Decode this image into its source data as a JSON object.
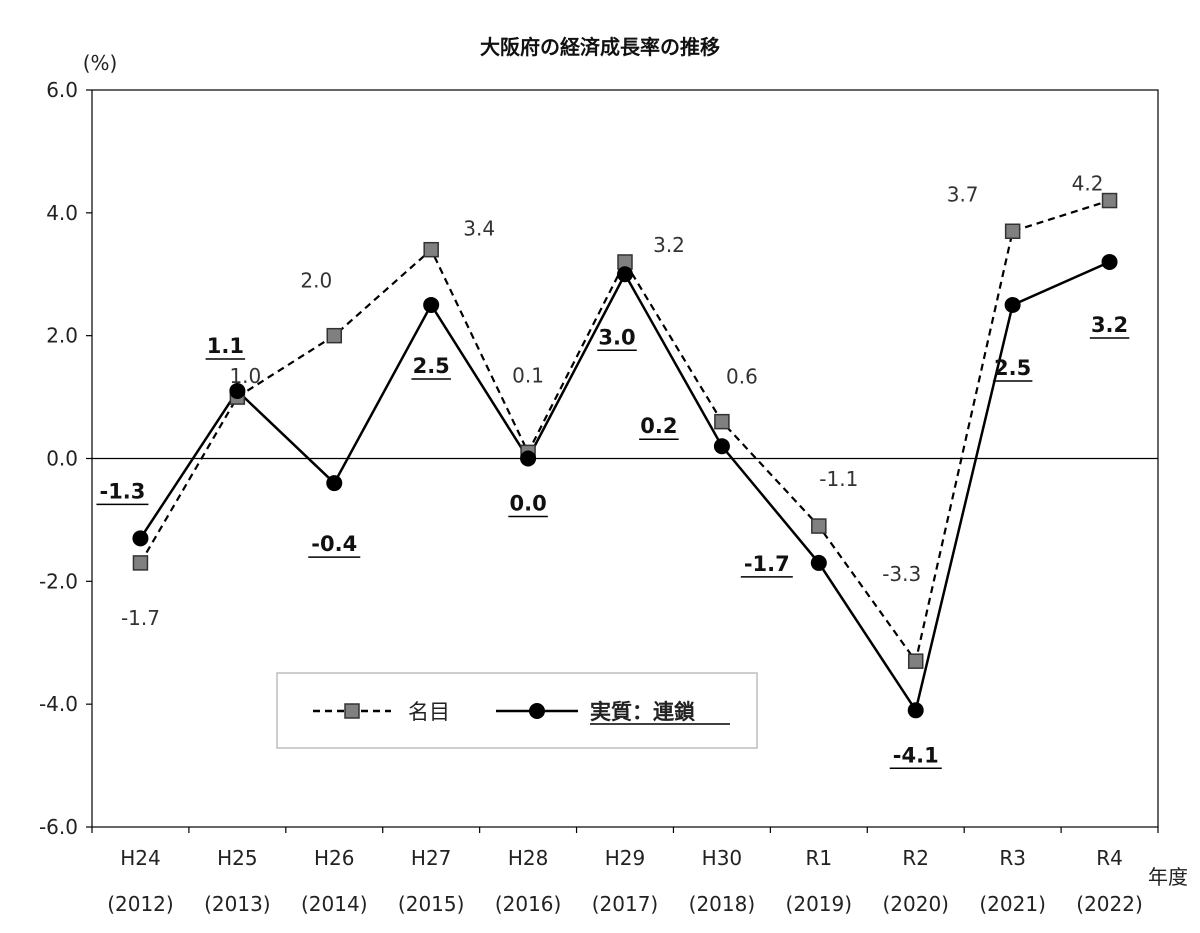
{
  "chart_data": {
    "type": "line",
    "title": "大阪府の経済成長率の推移",
    "ylabel": "(%)",
    "xlabel": "年度",
    "ylim": [
      -6.0,
      6.0
    ],
    "yticks": [
      "6.0",
      "4.0",
      "2.0",
      "0.0",
      "-2.0",
      "-4.0",
      "-6.0"
    ],
    "ytick_values": [
      6,
      4,
      2,
      0,
      -2,
      -4,
      -6
    ],
    "categories": [
      "H24",
      "H25",
      "H26",
      "H27",
      "H28",
      "H29",
      "H30",
      "R1",
      "R2",
      "R3",
      "R4"
    ],
    "categories_sub": [
      "(2012)",
      "(2013)",
      "(2014)",
      "(2015)",
      "(2016)",
      "(2017)",
      "(2018)",
      "(2019)",
      "(2020)",
      "(2021)",
      "(2022)"
    ],
    "series": [
      {
        "name": "名目",
        "style": "dashed-square",
        "color": "#808080",
        "values": [
          -1.7,
          1.0,
          2.0,
          3.4,
          0.1,
          3.2,
          0.6,
          -1.1,
          -3.3,
          3.7,
          4.2
        ],
        "labels": [
          "-1.7",
          "1.0",
          "2.0",
          "3.4",
          "0.1",
          "3.2",
          "0.6",
          "-1.1",
          "-3.3",
          "3.7",
          "4.2"
        ]
      },
      {
        "name": "実質：連鎖",
        "style": "solid-circle",
        "color": "#000000",
        "values": [
          -1.3,
          1.1,
          -0.4,
          2.5,
          0.0,
          3.0,
          0.2,
          -1.7,
          -4.1,
          2.5,
          3.2
        ],
        "labels": [
          "-1.3",
          "1.1",
          "-0.4",
          "2.5",
          "0.0",
          "3.0",
          "0.2",
          "-1.7",
          "-4.1",
          "2.5",
          "3.2"
        ]
      }
    ],
    "legend": {
      "placement": "bottom-center"
    },
    "grid": false
  }
}
